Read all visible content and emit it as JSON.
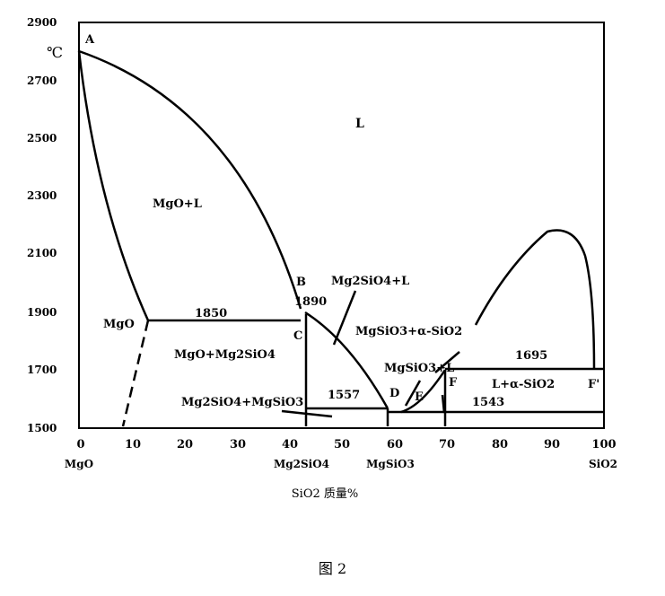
{
  "chart": {
    "unit_label": "℃",
    "y_ticks": [
      "2900",
      "2700",
      "2500",
      "2300",
      "2100",
      "1900",
      "1700",
      "1500"
    ],
    "x_ticks": [
      "0",
      "10",
      "20",
      "30",
      "40",
      "50",
      "60",
      "70",
      "80",
      "90",
      "100"
    ],
    "x_species": [
      {
        "label": "MgO",
        "x": 0
      },
      {
        "label": "Mg2SiO4",
        "x": 42.8
      },
      {
        "label": "MgSiO3",
        "x": 59.8
      },
      {
        "label": "SiO2",
        "x": 100
      }
    ],
    "x_axis_label": "SiO2 质量%",
    "points": [
      {
        "label": "A",
        "x": 0,
        "y": 2800
      },
      {
        "label": "B",
        "x": 42.8,
        "y": 1890
      },
      {
        "label": "C",
        "x": 42.8,
        "y": 1850
      },
      {
        "label": "D",
        "x": 60,
        "y": 1557
      },
      {
        "label": "E",
        "x": 65,
        "y": 1557
      },
      {
        "label": "F",
        "x": 70.5,
        "y": 1695
      },
      {
        "label": "F'",
        "x": 98.5,
        "y": 1695
      }
    ],
    "temperatures": [
      {
        "label": "1850",
        "x": 22,
        "y": 1850
      },
      {
        "label": "1890",
        "x": 44.5,
        "y": 1890
      },
      {
        "label": "1557",
        "x": 50,
        "y": 1557
      },
      {
        "label": "1543",
        "x": 78,
        "y": 1543
      },
      {
        "label": "1695",
        "x": 84,
        "y": 1695
      }
    ],
    "regions": [
      {
        "label": "L",
        "x": 55,
        "y": 2440
      },
      {
        "label": "MgO+L",
        "x": 18,
        "y": 2270
      },
      {
        "label": "MgO",
        "x": 7,
        "y": 1840
      },
      {
        "label": "MgO+Mg2SiO4",
        "x": 20.5,
        "y": 1740
      },
      {
        "label": "Mg2SiO4+L",
        "x": 60,
        "y": 1990
      },
      {
        "label": "MgSiO3+α-SiO2",
        "x": 63,
        "y": 1820
      },
      {
        "label": "MgSiO3+L",
        "x": 68,
        "y": 1715
      },
      {
        "label": "Mg2SiO4+MgSiO3",
        "x": 23,
        "y": 1620
      },
      {
        "label": "L+α-SiO2",
        "x": 89,
        "y": 1640
      }
    ],
    "ylim": [
      1500,
      2900
    ],
    "xlim": [
      0,
      100
    ]
  },
  "caption": "图 2"
}
